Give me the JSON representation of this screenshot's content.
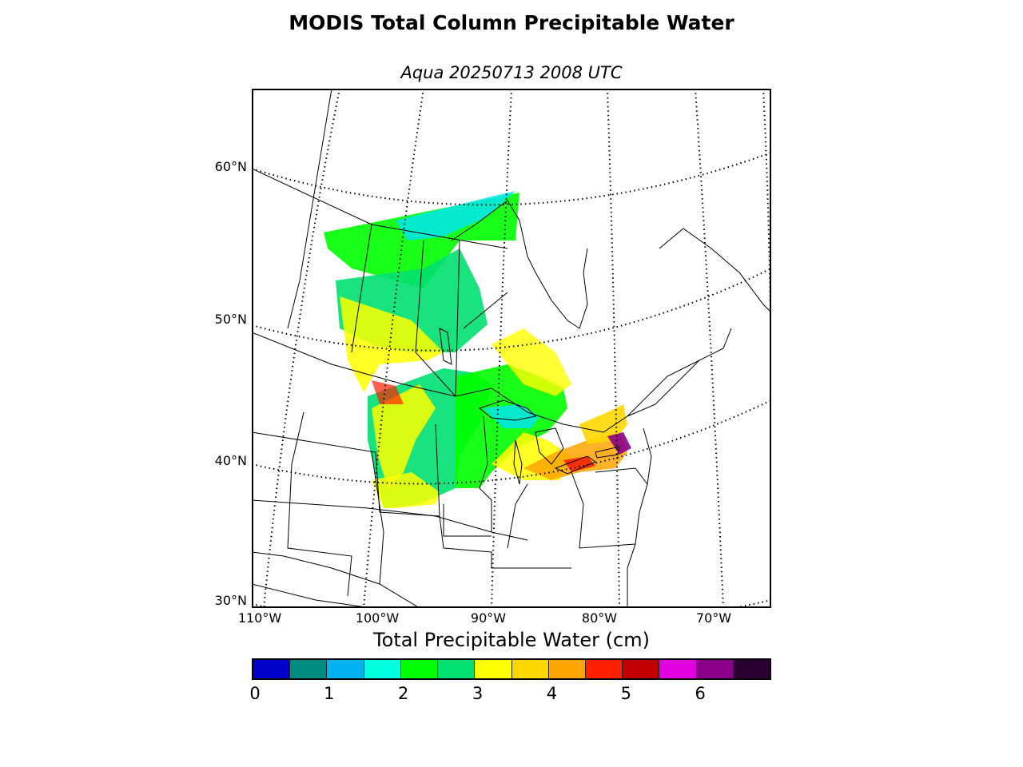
{
  "figure": {
    "title": "MODIS Total Column Precipitable Water",
    "subtitle": "Aqua 20250713 2008 UTC"
  },
  "map": {
    "projection": "lambert-conformal",
    "region": "central and eastern North America",
    "lat_labels": [
      "60°N",
      "50°N",
      "40°N",
      "30°N"
    ],
    "lon_labels": [
      "110°W",
      "100°W",
      "90°W",
      "80°W",
      "70°W"
    ],
    "graticule": "dotted",
    "boundaries": [
      "coastlines",
      "country borders",
      "state and province borders"
    ]
  },
  "colorbar": {
    "title": "Total Precipitable Water (cm)",
    "tick_labels": [
      "0",
      "1",
      "2",
      "3",
      "4",
      "5",
      "6"
    ],
    "range": [
      0,
      7
    ],
    "step": 0.5,
    "colors": [
      "#0000cd",
      "#008b80",
      "#00b2ee",
      "#00ffe0",
      "#00ff00",
      "#00e070",
      "#ffff00",
      "#ffd700",
      "#ffa500",
      "#ff2000",
      "#c00000",
      "#e000e0",
      "#8b008b",
      "#2a0030"
    ]
  }
}
